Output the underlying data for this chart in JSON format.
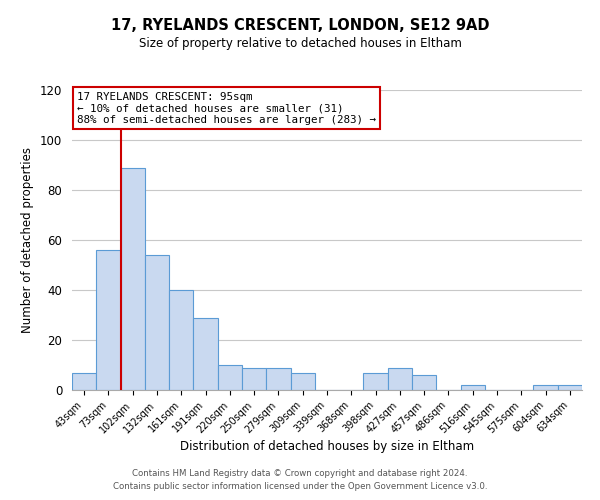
{
  "title": "17, RYELANDS CRESCENT, LONDON, SE12 9AD",
  "subtitle": "Size of property relative to detached houses in Eltham",
  "xlabel": "Distribution of detached houses by size in Eltham",
  "ylabel": "Number of detached properties",
  "bar_labels": [
    "43sqm",
    "73sqm",
    "102sqm",
    "132sqm",
    "161sqm",
    "191sqm",
    "220sqm",
    "250sqm",
    "279sqm",
    "309sqm",
    "339sqm",
    "368sqm",
    "398sqm",
    "427sqm",
    "457sqm",
    "486sqm",
    "516sqm",
    "545sqm",
    "575sqm",
    "604sqm",
    "634sqm"
  ],
  "bar_values": [
    7,
    56,
    89,
    54,
    40,
    29,
    10,
    9,
    9,
    7,
    0,
    0,
    7,
    9,
    6,
    0,
    2,
    0,
    0,
    2,
    2
  ],
  "bar_color": "#c9d9f0",
  "bar_edge_color": "#5b9bd5",
  "vline_color": "#cc0000",
  "ylim": [
    0,
    120
  ],
  "yticks": [
    0,
    20,
    40,
    60,
    80,
    100,
    120
  ],
  "annotation_title": "17 RYELANDS CRESCENT: 95sqm",
  "annotation_line1": "← 10% of detached houses are smaller (31)",
  "annotation_line2": "88% of semi-detached houses are larger (283) →",
  "annotation_box_color": "#ffffff",
  "annotation_box_edge_color": "#cc0000",
  "footer_line1": "Contains HM Land Registry data © Crown copyright and database right 2024.",
  "footer_line2": "Contains public sector information licensed under the Open Government Licence v3.0.",
  "background_color": "#ffffff",
  "grid_color": "#c8c8c8"
}
